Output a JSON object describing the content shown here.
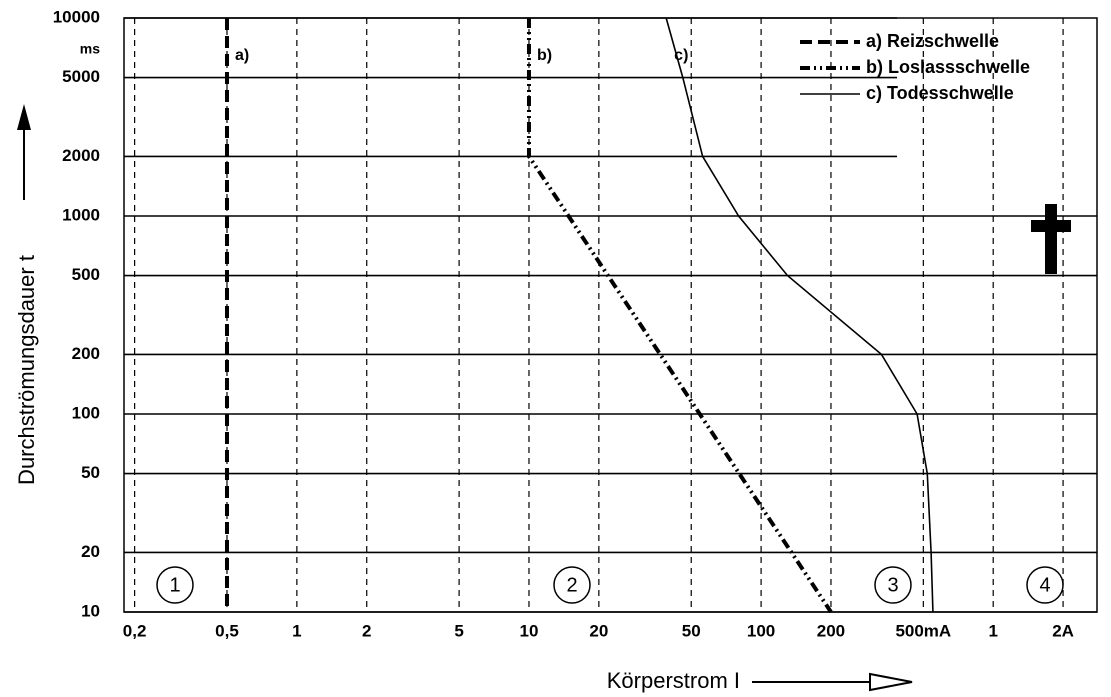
{
  "chart_data": {
    "type": "line",
    "x_label": "Körperstrom I",
    "y_label": "Durchströmungsdauer t",
    "y_unit": "ms",
    "log_x": true,
    "log_y": true,
    "grid": true,
    "legend_position": "upper right",
    "xlim": [
      0.18,
      2800
    ],
    "ylim": [
      10,
      10000
    ],
    "xticks": [
      {
        "value": 0.2,
        "label": "0,2"
      },
      {
        "value": 0.5,
        "label": "0,5"
      },
      1,
      2,
      5,
      10,
      20,
      50,
      100,
      200,
      {
        "value": 500,
        "label": "500mA"
      },
      {
        "value": 1000,
        "label": "1"
      },
      {
        "value": 2000,
        "label": "2A"
      }
    ],
    "yticks": [
      10,
      20,
      50,
      100,
      200,
      500,
      1000,
      2000,
      5000,
      10000
    ],
    "series": [
      {
        "name": "a) Reizschwelle",
        "tag": "a)",
        "color": "#000000",
        "dash": "dashed",
        "x": [
          0.5,
          0.5
        ],
        "values": [
          10000,
          10
        ]
      },
      {
        "name": "b) Loslassschwelle",
        "tag": "b)",
        "color": "#000000",
        "dash": "dashdot",
        "x": [
          10,
          10,
          200
        ],
        "values": [
          10000,
          2000,
          10
        ]
      },
      {
        "name": "c) Todesschwelle",
        "tag": "c)",
        "color": "#000000",
        "dash": "solid",
        "x": [
          39,
          46,
          56,
          80,
          130,
          330,
          470,
          520,
          540,
          550
        ],
        "values": [
          10000,
          5000,
          2000,
          1000,
          500,
          200,
          100,
          50,
          20,
          10
        ]
      }
    ],
    "regions": [
      "1",
      "2",
      "3",
      "4"
    ]
  }
}
